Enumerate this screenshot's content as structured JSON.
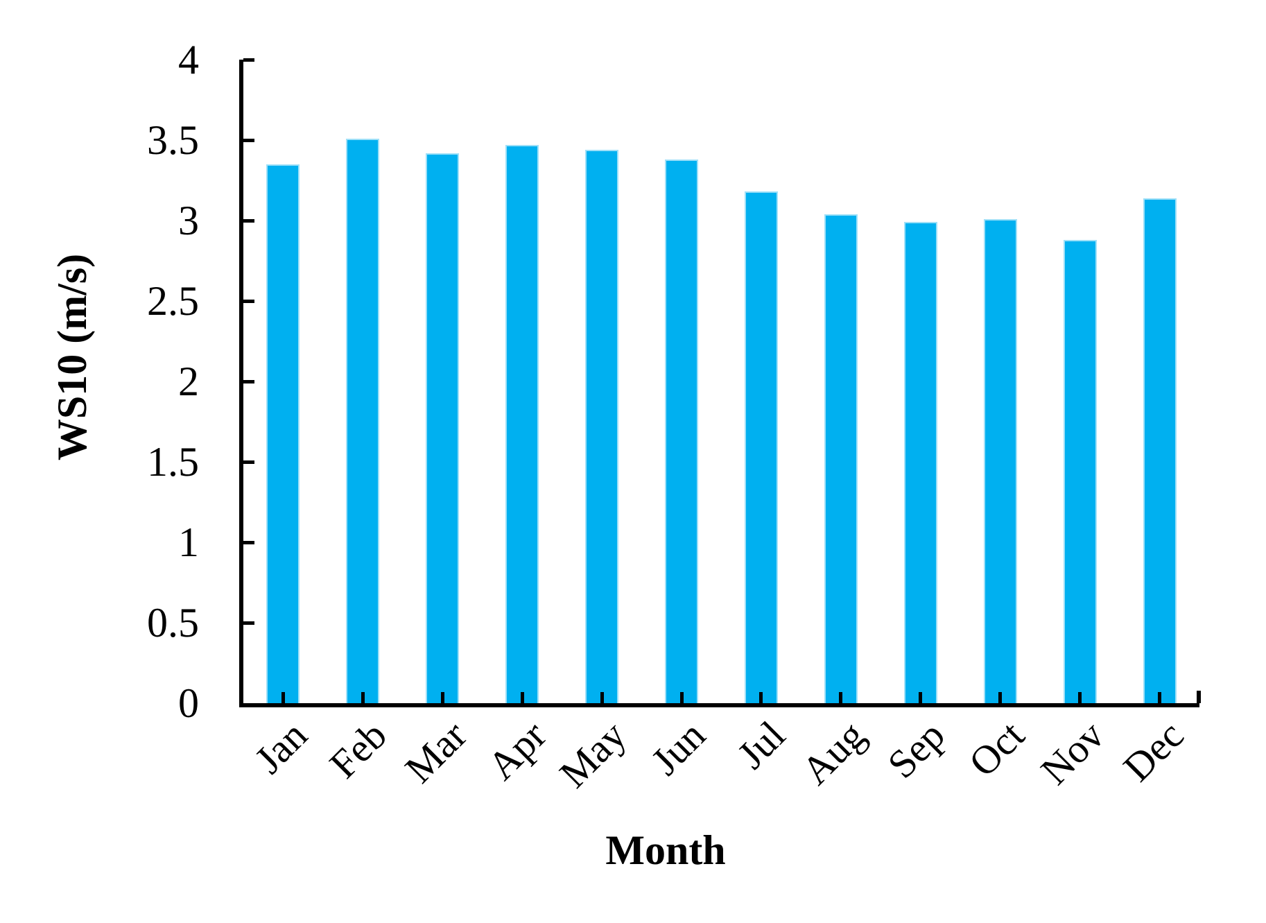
{
  "figure": {
    "background": "#ffffff"
  },
  "chart_data": {
    "type": "bar",
    "title": "",
    "xlabel": "Month",
    "ylabel": "WS10 (m/s)",
    "categories": [
      "Jan",
      "Feb",
      "Mar",
      "Apr",
      "May",
      "Jun",
      "Jul",
      "Aug",
      "Sep",
      "Oct",
      "Nov",
      "Dec"
    ],
    "values": [
      3.35,
      3.51,
      3.42,
      3.47,
      3.44,
      3.38,
      3.18,
      3.04,
      2.99,
      3.01,
      2.88,
      3.14
    ],
    "ylim": [
      0,
      4
    ],
    "ytick_interval": 0.5,
    "ytick_labels": [
      "0",
      "0.5",
      "1",
      "1.5",
      "2",
      "2.5",
      "3",
      "3.5",
      "4"
    ],
    "xtick_label_rotation_deg": 45,
    "bar_color": "#00b0f0",
    "bar_edge_color": "#9fe0f8",
    "axis_color": "#000000",
    "grid": false,
    "legend_position": "none"
  }
}
